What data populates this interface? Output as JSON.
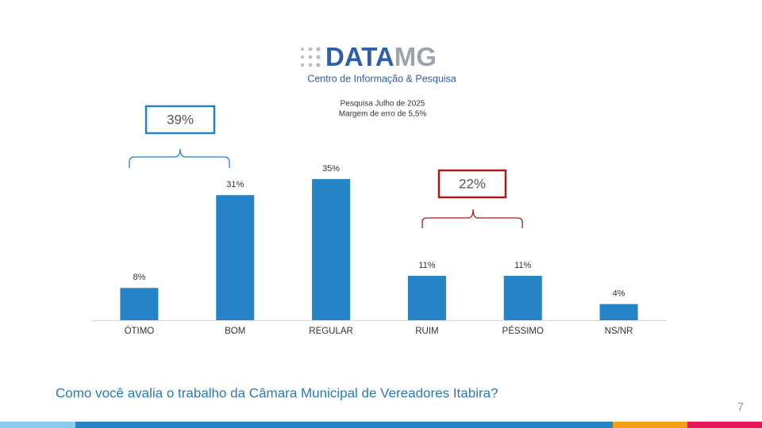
{
  "logo": {
    "brand": "DATA",
    "brand_accent": "MG",
    "tagline": "Centro de Informação & Pesquisa"
  },
  "chart_data": {
    "type": "bar",
    "subtitle": [
      "Pesquisa Julho de 2025",
      "Margem de erro de 5,5%"
    ],
    "categories": [
      "ÓTIMO",
      "BOM",
      "REGULAR",
      "RUIM",
      "PÉSSIMO",
      "NS/NR"
    ],
    "values": [
      8,
      31,
      35,
      11,
      11,
      4
    ],
    "value_labels": [
      "8%",
      "31%",
      "35%",
      "11%",
      "11%",
      "4%"
    ],
    "color": "#2583c6",
    "annotations": [
      "39%",
      "22%"
    ],
    "title": "Como você avalia o trabalho da Câmara Municipal de Vereadores Itabira?"
  },
  "page_number": "7"
}
